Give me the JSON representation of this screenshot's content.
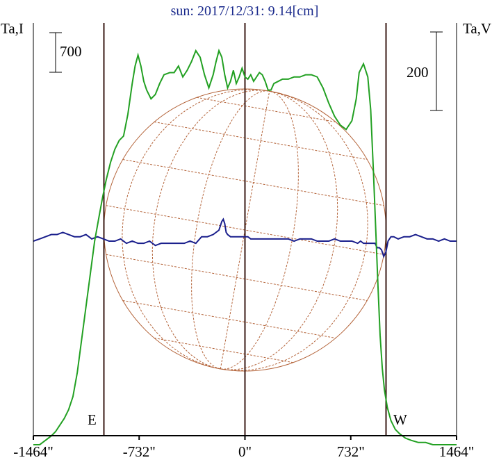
{
  "chart_data": {
    "type": "line",
    "title": "sun: 2017/12/31: 9.14[cm]",
    "ylabel_left": "Ta,I",
    "ylabel_right": "Ta,V",
    "scale_left": "700",
    "scale_right": "200",
    "east_label": "E",
    "west_label": "W",
    "xlim": [
      -1464,
      1464
    ],
    "x_ticks": [
      -1464,
      -732,
      0,
      732,
      1464
    ],
    "x_tick_labels": [
      "-1464\"",
      "-732\"",
      "0\"",
      "732\"",
      "1464\""
    ],
    "limb_markers": [
      -976,
      0,
      976
    ],
    "solar_radius_arcsec": 976,
    "grid": false,
    "colors": {
      "intensity": "#22a022",
      "polarization": "#1a1f8c",
      "disk": "#b4643a",
      "markers": "#3a1a14",
      "title": "#1a2a8c"
    },
    "series": [
      {
        "key": "I",
        "x": [
          -1464,
          -1420,
          -1380,
          -1340,
          -1310,
          -1280,
          -1250,
          -1220,
          -1190,
          -1160,
          -1130,
          -1100,
          -1070,
          -1040,
          -1010,
          -985,
          -960,
          -930,
          -900,
          -870,
          -840,
          -810,
          -780,
          -760,
          -740,
          -720,
          -700,
          -680,
          -650,
          -620,
          -590,
          -560,
          -520,
          -490,
          -460,
          -430,
          -400,
          -370,
          -340,
          -310,
          -280,
          -250,
          -220,
          -200,
          -180,
          -160,
          -140,
          -120,
          -100,
          -80,
          -60,
          -40,
          -20,
          0,
          20,
          40,
          60,
          80,
          100,
          120,
          140,
          160,
          180,
          200,
          230,
          260,
          300,
          340,
          380,
          420,
          460,
          500,
          540,
          580,
          620,
          660,
          700,
          740,
          770,
          790,
          820,
          850,
          870,
          890,
          905,
          920,
          935,
          950,
          965,
          985,
          1010,
          1040,
          1070,
          1110,
          1150,
          1200,
          1250,
          1300,
          1350,
          1400,
          1464
        ],
        "y": [
          -0.93,
          -0.93,
          -0.91,
          -0.89,
          -0.87,
          -0.84,
          -0.81,
          -0.77,
          -0.71,
          -0.6,
          -0.45,
          -0.3,
          -0.15,
          0,
          0.11,
          0.2,
          0.28,
          0.36,
          0.42,
          0.46,
          0.48,
          0.58,
          0.72,
          0.8,
          0.85,
          0.8,
          0.73,
          0.69,
          0.65,
          0.67,
          0.72,
          0.76,
          0.77,
          0.77,
          0.8,
          0.75,
          0.78,
          0.82,
          0.87,
          0.84,
          0.76,
          0.7,
          0.76,
          0.82,
          0.87,
          0.84,
          0.76,
          0.7,
          0.73,
          0.78,
          0.72,
          0.75,
          0.79,
          0.75,
          0.74,
          0.76,
          0.73,
          0.75,
          0.77,
          0.76,
          0.73,
          0.69,
          0.69,
          0.72,
          0.73,
          0.74,
          0.74,
          0.75,
          0.75,
          0.76,
          0.76,
          0.75,
          0.7,
          0.63,
          0.57,
          0.53,
          0.51,
          0.55,
          0.65,
          0.77,
          0.81,
          0.75,
          0.6,
          0.3,
          0.05,
          -0.2,
          -0.43,
          -0.58,
          -0.68,
          -0.76,
          -0.82,
          -0.86,
          -0.88,
          -0.9,
          -0.91,
          -0.92,
          -0.92,
          -0.93,
          -0.93,
          -0.93,
          -0.93
        ]
      },
      {
        "key": "V",
        "x": [
          -1464,
          -1420,
          -1380,
          -1340,
          -1300,
          -1260,
          -1220,
          -1180,
          -1140,
          -1100,
          -1060,
          -1020,
          -980,
          -940,
          -900,
          -860,
          -820,
          -780,
          -740,
          -700,
          -660,
          -620,
          -580,
          -540,
          -500,
          -460,
          -420,
          -380,
          -340,
          -300,
          -260,
          -220,
          -180,
          -160,
          -150,
          -140,
          -130,
          -120,
          -100,
          -80,
          -60,
          -40,
          -20,
          0,
          20,
          40,
          60,
          80,
          100,
          140,
          180,
          220,
          260,
          300,
          340,
          380,
          420,
          460,
          500,
          540,
          580,
          620,
          660,
          700,
          740,
          780,
          800,
          820,
          840,
          860,
          880,
          900,
          915,
          930,
          945,
          960,
          975,
          990,
          1010,
          1030,
          1060,
          1100,
          1140,
          1180,
          1220,
          1260,
          1300,
          1340,
          1380,
          1420,
          1464
        ],
        "y": [
          0,
          0.01,
          0.02,
          0.03,
          0.03,
          0.04,
          0.03,
          0.02,
          0.02,
          0.03,
          0.01,
          0.02,
          0.01,
          0,
          0,
          0.01,
          -0.01,
          0,
          -0.01,
          -0.01,
          0,
          -0.02,
          -0.01,
          -0.01,
          -0.01,
          -0.01,
          -0.01,
          0,
          -0.01,
          0.02,
          0.02,
          0.03,
          0.05,
          0.09,
          0.1,
          0.08,
          0.04,
          0.03,
          0.02,
          0.02,
          0.02,
          0.02,
          0.02,
          0.02,
          0.02,
          0.01,
          0.01,
          0.01,
          0.01,
          0.01,
          0.01,
          0.01,
          0.01,
          0.01,
          0,
          0.01,
          0.01,
          0.01,
          0,
          0,
          0,
          0.01,
          0,
          0,
          0,
          -0.01,
          0,
          -0.01,
          -0.01,
          -0.01,
          -0.01,
          -0.01,
          -0.03,
          -0.03,
          -0.04,
          -0.07,
          -0.05,
          0,
          0.02,
          0.02,
          0.01,
          0.02,
          0.02,
          0.03,
          0.02,
          0.01,
          0.01,
          0,
          0.01,
          0,
          0
        ]
      }
    ]
  }
}
